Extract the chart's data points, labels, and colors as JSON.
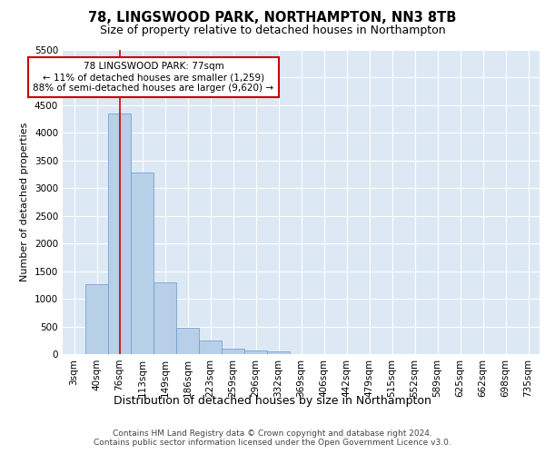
{
  "title1": "78, LINGSWOOD PARK, NORTHAMPTON, NN3 8TB",
  "title2": "Size of property relative to detached houses in Northampton",
  "xlabel": "Distribution of detached houses by size in Northampton",
  "ylabel": "Number of detached properties",
  "categories": [
    "3sqm",
    "40sqm",
    "76sqm",
    "113sqm",
    "149sqm",
    "186sqm",
    "223sqm",
    "259sqm",
    "296sqm",
    "332sqm",
    "369sqm",
    "406sqm",
    "442sqm",
    "479sqm",
    "515sqm",
    "552sqm",
    "589sqm",
    "625sqm",
    "662sqm",
    "698sqm",
    "735sqm"
  ],
  "values": [
    0,
    1270,
    4350,
    3280,
    1290,
    480,
    240,
    100,
    70,
    50,
    0,
    0,
    0,
    0,
    0,
    0,
    0,
    0,
    0,
    0,
    0
  ],
  "bar_color": "#b8cfe8",
  "bar_edge_color": "#6699cc",
  "vline_x_index": 2,
  "vline_color": "#cc0000",
  "annotation_text": "78 LINGSWOOD PARK: 77sqm\n← 11% of detached houses are smaller (1,259)\n88% of semi-detached houses are larger (9,620) →",
  "annotation_box_color": "#ffffff",
  "annotation_box_edge": "#cc0000",
  "ylim": [
    0,
    5500
  ],
  "yticks": [
    0,
    500,
    1000,
    1500,
    2000,
    2500,
    3000,
    3500,
    4000,
    4500,
    5000,
    5500
  ],
  "bg_color": "#dde8f5",
  "footer": "Contains HM Land Registry data © Crown copyright and database right 2024.\nContains public sector information licensed under the Open Government Licence v3.0.",
  "title1_fontsize": 10.5,
  "title2_fontsize": 9,
  "xlabel_fontsize": 9,
  "ylabel_fontsize": 8,
  "tick_fontsize": 7.5,
  "footer_fontsize": 6.5
}
